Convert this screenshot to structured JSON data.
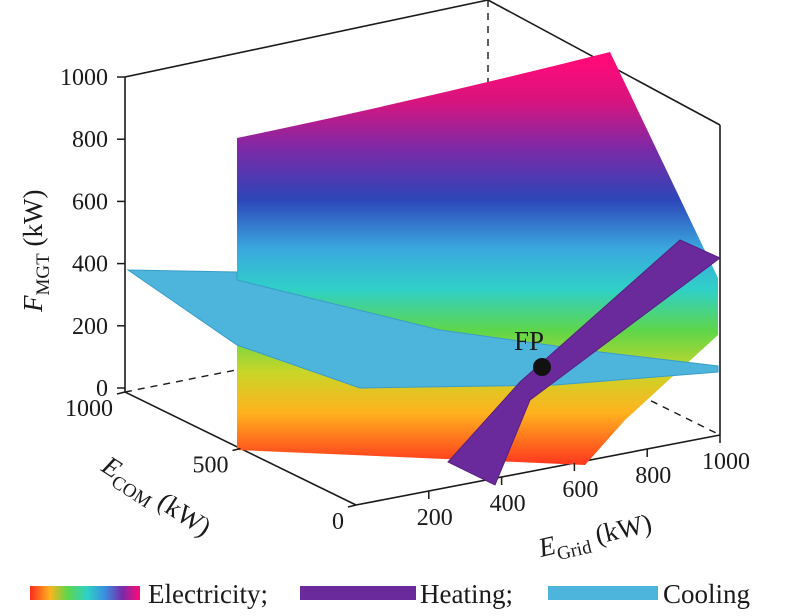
{
  "chart_data": {
    "type": "surface3d",
    "axes": {
      "x": {
        "symbol": "E",
        "subscript": "Grid",
        "unit": " (kW)",
        "ticks": [
          "200",
          "400",
          "600",
          "800",
          "1000"
        ]
      },
      "y": {
        "symbol": "E",
        "subscript": "COM",
        "unit": " (kW)",
        "ticks": [
          "0",
          "500",
          "1000"
        ]
      },
      "z": {
        "symbol": "F",
        "subscript": "MGT",
        "unit": " (kW)",
        "ticks": [
          "0",
          "200",
          "400",
          "600",
          "800",
          "1000"
        ]
      }
    },
    "point": {
      "label": "FP",
      "E_Grid": 550,
      "E_COM": 500,
      "F_MGT": 100
    },
    "surfaces": [
      {
        "name": "Electricity",
        "fill": "rainbow"
      },
      {
        "name": "Heating",
        "fill": "#6a2a9c"
      },
      {
        "name": "Cooling",
        "fill": "#4db4dc"
      }
    ],
    "legend": {
      "items": [
        {
          "label": "Electricity;",
          "swatch": "rainbow"
        },
        {
          "label": "Heating;",
          "swatch": "#6a2a9c"
        },
        {
          "label": "Cooling",
          "swatch": "#4db4dc"
        }
      ],
      "position": "bottom"
    },
    "grid": false
  }
}
